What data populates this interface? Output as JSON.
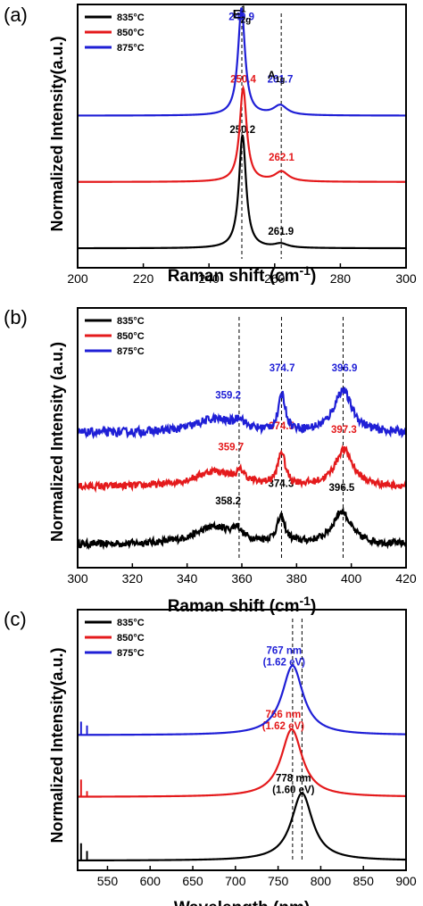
{
  "colors": {
    "835": "#000000",
    "850": "#e41a1c",
    "875": "#1f1fd6"
  },
  "chart_data": [
    {
      "panel": "(a)",
      "type": "line",
      "xlabel": "Raman shift (cm",
      "xlabel_sup": "-1",
      "xlabel_tail": ")",
      "ylabel": "Normalized Intensity(a.u.)",
      "xlim": [
        200,
        300
      ],
      "xticks": [
        "200",
        "220",
        "240",
        "260",
        "280",
        "300"
      ],
      "legend": {
        "position": "top-left",
        "entries": [
          "835°C",
          "850°C",
          "875°C"
        ]
      },
      "series": [
        {
          "name": "835°C",
          "color_key": "835",
          "baseline": 0.1,
          "peaks": [
            {
              "x": 250.2,
              "h": 0.58,
              "w": 1.3
            },
            {
              "x": 261.9,
              "h": 0.02,
              "w": 2.5
            }
          ],
          "labels": [
            {
              "text": "250.2",
              "x": 250.2,
              "level": 0.69
            },
            {
              "text": "261.9",
              "x": 261.9,
              "level": 0.17
            }
          ]
        },
        {
          "name": "850°C",
          "color_key": "850",
          "baseline": 0.44,
          "peaks": [
            {
              "x": 250.4,
              "h": 0.48,
              "w": 1.3
            },
            {
              "x": 262.1,
              "h": 0.05,
              "w": 2.5
            }
          ],
          "labels": [
            {
              "text": "250.4",
              "x": 250.4,
              "level": 0.95
            },
            {
              "text": "262.1",
              "x": 262.1,
              "level": 0.55
            }
          ]
        },
        {
          "name": "875°C",
          "color_key": "875",
          "baseline": 0.78,
          "peaks": [
            {
              "x": 249.9,
              "h": 0.55,
              "w": 1.3
            },
            {
              "x": 261.7,
              "h": 0.05,
              "w": 2.5
            }
          ],
          "labels": [
            {
              "text": "249.9",
              "x": 249.9,
              "level": 1.27
            },
            {
              "text": "261.7",
              "x": 261.7,
              "level": 0.95
            }
          ]
        }
      ],
      "peak_names": [
        {
          "base": "E",
          "sup": "1",
          "sub": "2g",
          "x": 250,
          "level": 1.28
        },
        {
          "base": "A",
          "sub": "1g",
          "x": 260.5,
          "level": 0.97
        }
      ],
      "guide_lines": [
        250,
        262
      ]
    },
    {
      "panel": "(b)",
      "type": "line",
      "xlabel": "Raman shift (cm",
      "xlabel_sup": "-1",
      "xlabel_tail": ")",
      "ylabel": "Normalized Intensity (a.u.)",
      "xlim": [
        300,
        420
      ],
      "xticks": [
        "300",
        "320",
        "340",
        "360",
        "380",
        "400",
        "420"
      ],
      "legend": {
        "position": "top-left",
        "entries": [
          "835°C",
          "850°C",
          "875°C"
        ]
      },
      "series": [
        {
          "name": "835°C",
          "color_key": "835",
          "baseline": 0.12,
          "noise": 0.018,
          "peaks": [
            {
              "x": 350,
              "h": 0.09,
              "w": 9
            },
            {
              "x": 358.2,
              "h": 0.05,
              "w": 1.8
            },
            {
              "x": 374.3,
              "h": 0.13,
              "w": 1.8
            },
            {
              "x": 396.5,
              "h": 0.17,
              "w": 4
            }
          ],
          "labels": [
            {
              "text": "358.2",
              "x": 355,
              "level": 0.33
            },
            {
              "text": "374.3",
              "x": 374.3,
              "level": 0.42
            },
            {
              "text": "396.5",
              "x": 396.5,
              "level": 0.4
            }
          ]
        },
        {
          "name": "850°C",
          "color_key": "850",
          "baseline": 0.42,
          "noise": 0.018,
          "peaks": [
            {
              "x": 350,
              "h": 0.08,
              "w": 9
            },
            {
              "x": 359.7,
              "h": 0.05,
              "w": 1.8
            },
            {
              "x": 374.5,
              "h": 0.17,
              "w": 1.6
            },
            {
              "x": 397.3,
              "h": 0.19,
              "w": 4
            }
          ],
          "labels": [
            {
              "text": "359.7",
              "x": 356,
              "level": 0.61
            },
            {
              "text": "374.5",
              "x": 374.5,
              "level": 0.72
            },
            {
              "text": "397.3",
              "x": 397.3,
              "level": 0.7
            }
          ]
        },
        {
          "name": "875°C",
          "color_key": "875",
          "baseline": 0.7,
          "noise": 0.022,
          "peaks": [
            {
              "x": 350,
              "h": 0.07,
              "w": 9
            },
            {
              "x": 359.2,
              "h": 0.05,
              "w": 1.8
            },
            {
              "x": 374.7,
              "h": 0.19,
              "w": 1.5
            },
            {
              "x": 396.9,
              "h": 0.22,
              "w": 4
            }
          ],
          "labels": [
            {
              "text": "359.2",
              "x": 355,
              "level": 0.88
            },
            {
              "text": "374.7",
              "x": 374.7,
              "level": 1.02
            },
            {
              "text": "396.9",
              "x": 397.5,
              "level": 1.02
            }
          ]
        }
      ],
      "guide_lines": [
        359,
        374.5,
        397
      ]
    },
    {
      "panel": "(c)",
      "type": "line",
      "xlabel": "Wavelength (nm)",
      "ylabel": "Normalized Intensity(a.u.)",
      "xlim": [
        515,
        900
      ],
      "xticks": [
        "550",
        "600",
        "650",
        "700",
        "750",
        "800",
        "850",
        "900"
      ],
      "legend": {
        "position": "top-left",
        "entries": [
          "835°C",
          "850°C",
          "875°C"
        ]
      },
      "series": [
        {
          "name": "835°C",
          "color_key": "835",
          "baseline": 0.05,
          "peaks": [
            {
              "x": 778,
              "h": 0.35,
              "w": 15
            }
          ],
          "spikes": [
            {
              "x": 519,
              "h": 0.09
            },
            {
              "x": 526,
              "h": 0.05
            }
          ],
          "labels": [
            {
              "text": "778 nm",
              "x": 768,
              "level": 0.46
            },
            {
              "text": "(1.60 eV)",
              "x": 768,
              "level": 0.4
            }
          ]
        },
        {
          "name": "850°C",
          "color_key": "850",
          "baseline": 0.38,
          "peaks": [
            {
              "x": 766,
              "h": 0.35,
              "w": 15
            }
          ],
          "spikes": [
            {
              "x": 519,
              "h": 0.09
            },
            {
              "x": 526,
              "h": 0.03
            }
          ],
          "labels": [
            {
              "text": "766 nm",
              "x": 756,
              "level": 0.79
            },
            {
              "text": "(1.62 eV)",
              "x": 756,
              "level": 0.73
            }
          ]
        },
        {
          "name": "875°C",
          "color_key": "875",
          "baseline": 0.7,
          "peaks": [
            {
              "x": 767,
              "h": 0.36,
              "w": 15
            }
          ],
          "spikes": [
            {
              "x": 519,
              "h": 0.07
            },
            {
              "x": 526,
              "h": 0.05
            }
          ],
          "labels": [
            {
              "text": "767 nm",
              "x": 757,
              "level": 1.12
            },
            {
              "text": "(1.62 eV)",
              "x": 757,
              "level": 1.06
            }
          ]
        }
      ],
      "guide_lines": [
        767,
        778
      ]
    }
  ]
}
